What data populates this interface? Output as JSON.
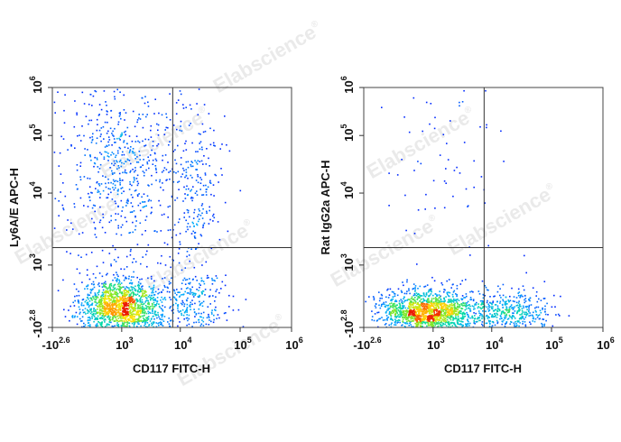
{
  "watermark_text": "Elabscience",
  "watermark_mark": "®",
  "chart_data": [
    {
      "type": "scatter",
      "plot_style": "flow-cytometry density dot plot (pseudocolor)",
      "xlabel": "CD117 FITC-H",
      "ylabel": "Ly6A/E APC-H",
      "x_scale": "biexponential",
      "y_scale": "biexponential",
      "x_ticks": [
        {
          "base": "-10",
          "exp": "2.6",
          "value": -398
        },
        {
          "base": "10",
          "exp": "3",
          "value": 1000
        },
        {
          "base": "10",
          "exp": "4",
          "value": 10000
        },
        {
          "base": "10",
          "exp": "5",
          "value": 100000
        },
        {
          "base": "10",
          "exp": "6",
          "value": 1000000
        }
      ],
      "y_ticks": [
        {
          "base": "-10",
          "exp": "2.8",
          "value": -631
        },
        {
          "base": "10",
          "exp": "3",
          "value": 1000
        },
        {
          "base": "10",
          "exp": "4",
          "value": 10000
        },
        {
          "base": "10",
          "exp": "5",
          "value": 100000
        },
        {
          "base": "10",
          "exp": "6",
          "value": 1000000
        }
      ],
      "quadrant_gate": {
        "x": 7500,
        "y": 1800
      },
      "populations": [
        {
          "x_center": 950,
          "y_center": -80,
          "x_spread": 0.22,
          "y_spread": 0.16,
          "n": 1500,
          "density": "high"
        },
        {
          "x_center": 1000,
          "y_center": 30000,
          "x_spread": 0.34,
          "y_spread": 0.55,
          "n": 650,
          "density": "low"
        },
        {
          "x_center": 18000,
          "y_center": 12000,
          "x_spread": 0.16,
          "y_spread": 0.45,
          "n": 220,
          "density": "low"
        },
        {
          "x_center": 16000,
          "y_center": -50,
          "x_spread": 0.2,
          "y_spread": 0.18,
          "n": 260,
          "density": "low"
        }
      ]
    },
    {
      "type": "scatter",
      "plot_style": "flow-cytometry density dot plot (pseudocolor)",
      "xlabel": "CD117 FITC-H",
      "ylabel": "Rat IgG2a APC-H",
      "x_scale": "biexponential",
      "y_scale": "biexponential",
      "x_ticks": [
        {
          "base": "-10",
          "exp": "2.6",
          "value": -398
        },
        {
          "base": "10",
          "exp": "3",
          "value": 1000
        },
        {
          "base": "10",
          "exp": "4",
          "value": 10000
        },
        {
          "base": "10",
          "exp": "5",
          "value": 100000
        },
        {
          "base": "10",
          "exp": "6",
          "value": 1000000
        }
      ],
      "y_ticks": [
        {
          "base": "-10",
          "exp": "2.8",
          "value": -631
        },
        {
          "base": "10",
          "exp": "3",
          "value": 1000
        },
        {
          "base": "10",
          "exp": "4",
          "value": 10000
        },
        {
          "base": "10",
          "exp": "5",
          "value": 100000
        },
        {
          "base": "10",
          "exp": "6",
          "value": 1000000
        }
      ],
      "quadrant_gate": {
        "x": 7500,
        "y": 1800
      },
      "populations": [
        {
          "x_center": 750,
          "y_center": -150,
          "x_spread": 0.26,
          "y_spread": 0.12,
          "n": 1500,
          "density": "high"
        },
        {
          "x_center": 18000,
          "y_center": -150,
          "x_spread": 0.26,
          "y_spread": 0.12,
          "n": 450,
          "density": "medium"
        },
        {
          "x_center": 1500,
          "y_center": 40000,
          "x_spread": 0.32,
          "y_spread": 0.6,
          "n": 75,
          "density": "low"
        }
      ]
    }
  ]
}
